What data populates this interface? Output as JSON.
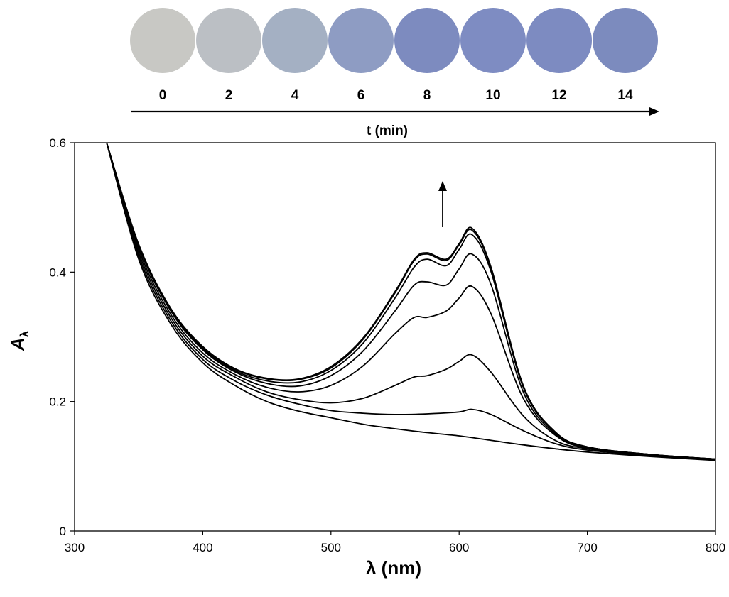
{
  "time_strip": {
    "times": [
      "0",
      "2",
      "4",
      "6",
      "8",
      "10",
      "12",
      "14"
    ],
    "spot_colors": [
      "#c8c8c4",
      "#bbbfc4",
      "#a4b0c3",
      "#8e9cc3",
      "#7d8bbf",
      "#7e8cc2",
      "#7d8bc1",
      "#7c8bbe"
    ],
    "axis_label": "t (min)"
  },
  "chart_data": {
    "type": "line",
    "title": "",
    "xlabel": "λ (nm)",
    "ylabel_main": "A",
    "ylabel_sub": "λ",
    "xlim": [
      300,
      800
    ],
    "ylim": [
      0,
      0.6
    ],
    "xticks": [
      "300",
      "400",
      "500",
      "600",
      "700",
      "800"
    ],
    "yticks": [
      "0",
      "0.2",
      "0.4",
      "0.6"
    ],
    "grid": false,
    "legend": "none",
    "annotation": "arrow pointing up at ~587 nm indicating increasing absorbance with time",
    "series": [
      {
        "x": [
          325,
          350,
          375,
          400,
          425,
          450,
          475,
          500,
          525,
          550,
          575,
          600,
          625,
          650,
          675,
          700,
          750,
          800
        ],
        "values": [
          0.6,
          0.42,
          0.32,
          0.26,
          0.225,
          0.2,
          0.185,
          0.175,
          0.165,
          0.158,
          0.152,
          0.147,
          0.14,
          0.133,
          0.127,
          0.122,
          0.115,
          0.109
        ]
      },
      {
        "x": [
          325,
          350,
          375,
          400,
          425,
          450,
          475,
          500,
          525,
          550,
          575,
          600,
          610,
          625,
          650,
          675,
          700,
          750,
          800
        ],
        "values": [
          0.6,
          0.425,
          0.325,
          0.265,
          0.232,
          0.21,
          0.196,
          0.186,
          0.182,
          0.18,
          0.181,
          0.184,
          0.188,
          0.18,
          0.155,
          0.135,
          0.125,
          0.116,
          0.11
        ]
      },
      {
        "x": [
          325,
          350,
          375,
          400,
          425,
          450,
          475,
          500,
          525,
          550,
          565,
          575,
          590,
          600,
          610,
          625,
          650,
          675,
          700,
          750,
          800
        ],
        "values": [
          0.6,
          0.43,
          0.33,
          0.27,
          0.238,
          0.215,
          0.203,
          0.198,
          0.205,
          0.225,
          0.238,
          0.24,
          0.25,
          0.262,
          0.272,
          0.245,
          0.178,
          0.14,
          0.127,
          0.117,
          0.11
        ]
      },
      {
        "x": [
          325,
          350,
          375,
          400,
          425,
          450,
          475,
          500,
          525,
          550,
          565,
          575,
          590,
          600,
          610,
          625,
          650,
          675,
          700,
          750,
          800
        ],
        "values": [
          0.6,
          0.435,
          0.335,
          0.275,
          0.242,
          0.222,
          0.215,
          0.225,
          0.255,
          0.305,
          0.33,
          0.33,
          0.34,
          0.36,
          0.378,
          0.335,
          0.205,
          0.148,
          0.128,
          0.118,
          0.111
        ]
      },
      {
        "x": [
          325,
          350,
          375,
          400,
          425,
          450,
          475,
          500,
          525,
          550,
          565,
          575,
          590,
          600,
          610,
          625,
          650,
          675,
          700,
          750,
          800
        ],
        "values": [
          0.6,
          0.44,
          0.34,
          0.28,
          0.246,
          0.228,
          0.224,
          0.24,
          0.278,
          0.34,
          0.38,
          0.385,
          0.38,
          0.405,
          0.428,
          0.38,
          0.215,
          0.15,
          0.129,
          0.118,
          0.111
        ]
      },
      {
        "x": [
          325,
          350,
          375,
          400,
          425,
          450,
          475,
          500,
          525,
          550,
          565,
          575,
          590,
          600,
          610,
          625,
          650,
          675,
          700,
          750,
          800
        ],
        "values": [
          0.6,
          0.44,
          0.342,
          0.282,
          0.248,
          0.232,
          0.23,
          0.248,
          0.29,
          0.36,
          0.408,
          0.42,
          0.41,
          0.435,
          0.458,
          0.4,
          0.222,
          0.152,
          0.13,
          0.118,
          0.111
        ]
      },
      {
        "x": [
          325,
          350,
          375,
          400,
          425,
          450,
          475,
          500,
          525,
          550,
          565,
          575,
          590,
          600,
          610,
          625,
          650,
          675,
          700,
          750,
          800
        ],
        "values": [
          0.6,
          0.442,
          0.343,
          0.284,
          0.25,
          0.235,
          0.234,
          0.252,
          0.296,
          0.368,
          0.418,
          0.428,
          0.418,
          0.442,
          0.465,
          0.405,
          0.224,
          0.153,
          0.13,
          0.118,
          0.111
        ]
      },
      {
        "x": [
          325,
          350,
          375,
          400,
          425,
          450,
          475,
          500,
          525,
          550,
          565,
          575,
          590,
          600,
          610,
          625,
          650,
          675,
          700,
          750,
          800
        ],
        "values": [
          0.6,
          0.443,
          0.344,
          0.285,
          0.251,
          0.236,
          0.235,
          0.254,
          0.298,
          0.37,
          0.42,
          0.43,
          0.42,
          0.444,
          0.468,
          0.407,
          0.225,
          0.153,
          0.13,
          0.118,
          0.111
        ]
      }
    ]
  }
}
